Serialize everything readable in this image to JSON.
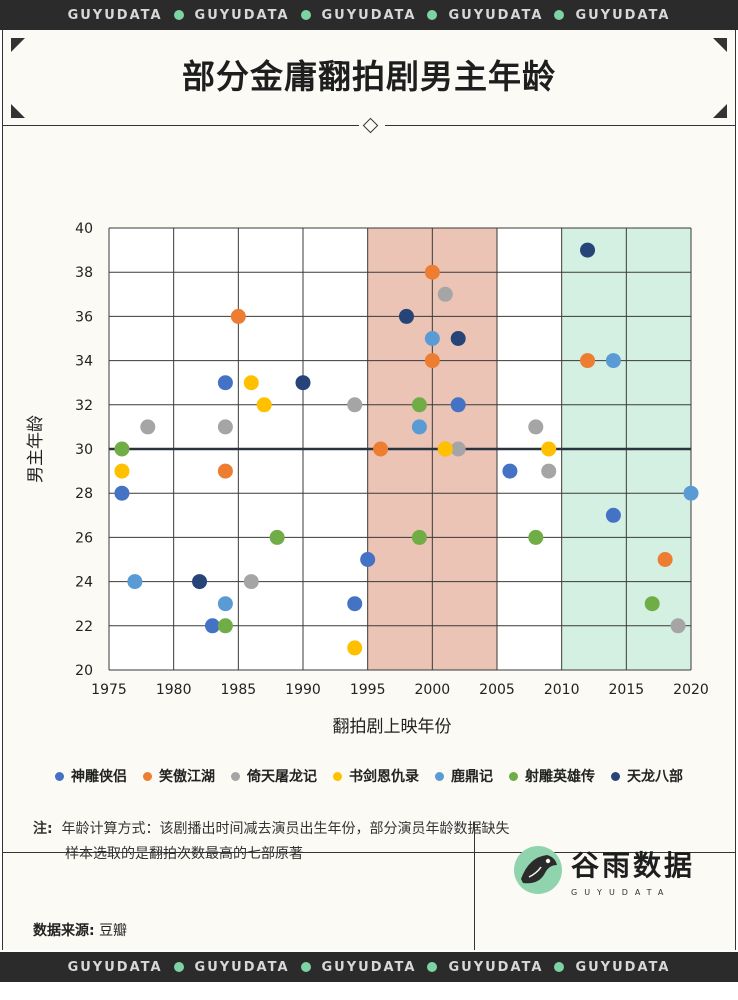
{
  "banner": {
    "items": [
      "GUYUDATA",
      "GUYUDATA",
      "GUYUDATA",
      "GUYUDATA",
      "GUYUDATA"
    ],
    "dot_color": "#7ed3a4"
  },
  "title": "部分金庸翻拍剧男主年龄",
  "legend": [
    {
      "label": "神雕侠侣",
      "color": "#4472c4"
    },
    {
      "label": "笑傲江湖",
      "color": "#ed7d31"
    },
    {
      "label": "倚天屠龙记",
      "color": "#a5a5a5"
    },
    {
      "label": "书剑恩仇录",
      "color": "#ffc000"
    },
    {
      "label": "鹿鼎记",
      "color": "#5b9bd5"
    },
    {
      "label": "射雕英雄传",
      "color": "#70ad47"
    },
    {
      "label": "天龙八部",
      "color": "#264478"
    }
  ],
  "note": {
    "label": "注:",
    "line1": "年龄计算方式：该剧播出时间减去演员出生年份，部分演员年龄数据缺失",
    "line2": "样本选取的是翻拍次数最高的七部原著"
  },
  "source": {
    "label": "数据来源:",
    "value": "豆瓣"
  },
  "brand": {
    "name": "谷雨数据",
    "sub": "GUYUDATA"
  },
  "chart_data": {
    "type": "scatter",
    "title": "部分金庸翻拍剧男主年龄",
    "xlabel": "翻拍剧上映年份",
    "ylabel": "男主年龄",
    "xlim": [
      1975,
      2020
    ],
    "ylim": [
      20,
      40
    ],
    "xticks": [
      1975,
      1980,
      1985,
      1990,
      1995,
      2000,
      2005,
      2010,
      2015,
      2020
    ],
    "yticks": [
      20,
      22,
      24,
      26,
      28,
      30,
      32,
      34,
      36,
      38,
      40
    ],
    "grid": true,
    "reference_line": 30,
    "highlight_ranges": [
      {
        "x": [
          1995,
          2005
        ],
        "color": "#ebc4b5"
      },
      {
        "x": [
          2010,
          2020
        ],
        "color": "#d4f0e3"
      }
    ],
    "series": [
      {
        "name": "神雕侠侣",
        "color": "#4472c4",
        "x": [
          1976,
          1983,
          1984,
          1994,
          1995,
          2002,
          2006,
          2014
        ],
        "y": [
          28,
          22,
          33,
          23,
          25,
          32,
          29,
          27
        ]
      },
      {
        "name": "笑傲江湖",
        "color": "#ed7d31",
        "x": [
          1984,
          1985,
          1996,
          2000,
          2000,
          2001,
          2012,
          2018
        ],
        "y": [
          29,
          36,
          30,
          38,
          34,
          30,
          34,
          25
        ]
      },
      {
        "name": "倚天屠龙记",
        "color": "#a5a5a5",
        "x": [
          1978,
          1984,
          1986,
          1994,
          2001,
          2002,
          2008,
          2009,
          2019
        ],
        "y": [
          31,
          31,
          24,
          32,
          37,
          30,
          31,
          29,
          22
        ]
      },
      {
        "name": "书剑恩仇录",
        "color": "#ffc000",
        "x": [
          1976,
          1986,
          1987,
          1994,
          2001,
          2009
        ],
        "y": [
          29,
          33,
          32,
          21,
          30,
          30
        ]
      },
      {
        "name": "鹿鼎记",
        "color": "#5b9bd5",
        "x": [
          1977,
          1984,
          1999,
          2000,
          2014,
          2020
        ],
        "y": [
          24,
          23,
          31,
          35,
          34,
          28
        ]
      },
      {
        "name": "射雕英雄传",
        "color": "#70ad47",
        "x": [
          1976,
          1984,
          1988,
          1999,
          1999,
          2008,
          2017
        ],
        "y": [
          30,
          22,
          26,
          32,
          26,
          26,
          23
        ]
      },
      {
        "name": "天龙八部",
        "color": "#264478",
        "x": [
          1982,
          1990,
          1998,
          2002,
          2012
        ],
        "y": [
          24,
          33,
          36,
          35,
          39
        ]
      }
    ]
  }
}
